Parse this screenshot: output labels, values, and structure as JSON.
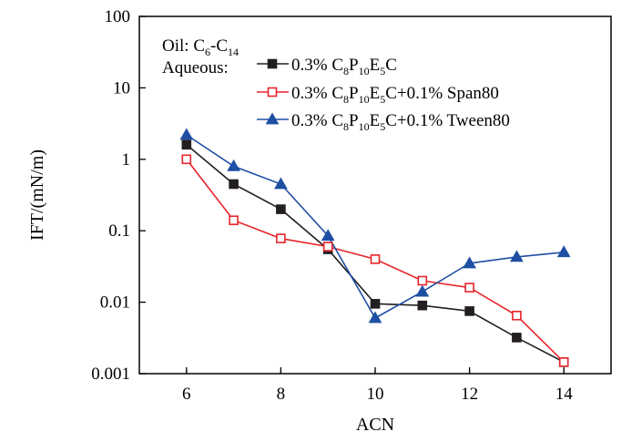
{
  "chart_data": {
    "type": "line",
    "y_scale": "log",
    "xlabel": "ACN",
    "ylabel": "IFT/(mN/m)",
    "xlim": [
      5,
      15
    ],
    "ylim": [
      0.001,
      100
    ],
    "xticks": [
      "6",
      "8",
      "10",
      "12",
      "14"
    ],
    "yticks": [
      "100",
      "10",
      "1",
      "0.1",
      "0.01",
      "0.001"
    ],
    "legend": {
      "placement": "top-left",
      "oil_label": "Oil: ",
      "oil_name": [
        {
          "t": "C",
          "s": "n"
        },
        {
          "t": "6",
          "s": "sub"
        },
        {
          "t": "-C",
          "s": "n"
        },
        {
          "t": "14",
          "s": "sub"
        }
      ],
      "aqueous_label": "Aqueous:"
    },
    "x": [
      6,
      7,
      8,
      9,
      10,
      11,
      12,
      13,
      14
    ],
    "series": [
      {
        "name": "0.3% C8P10E5C",
        "name_rich": [
          {
            "t": "0.3% C",
            "s": "n"
          },
          {
            "t": "8",
            "s": "sub"
          },
          {
            "t": "P",
            "s": "n"
          },
          {
            "t": "10",
            "s": "sub"
          },
          {
            "t": "E",
            "s": "n"
          },
          {
            "t": "5",
            "s": "sub"
          },
          {
            "t": "C",
            "s": "n"
          }
        ],
        "color": "#231f20",
        "marker": "filled-square",
        "values": [
          1.6,
          0.45,
          0.2,
          0.055,
          0.0095,
          0.009,
          0.0075,
          0.0032,
          0.00145
        ]
      },
      {
        "name": "0.3% C8P10E5C+0.1% Span80",
        "name_rich": [
          {
            "t": "0.3% C",
            "s": "n"
          },
          {
            "t": "8",
            "s": "sub"
          },
          {
            "t": "P",
            "s": "n"
          },
          {
            "t": "10",
            "s": "sub"
          },
          {
            "t": "E",
            "s": "n"
          },
          {
            "t": "5",
            "s": "sub"
          },
          {
            "t": "C+0.1% Span80",
            "s": "n"
          }
        ],
        "color": "#e8242b",
        "marker": "open-square",
        "values": [
          1.0,
          0.14,
          0.078,
          0.06,
          0.04,
          0.02,
          0.016,
          0.0065,
          0.00145
        ]
      },
      {
        "name": "0.3% C8P10E5C+0.1% Tween80",
        "name_rich": [
          {
            "t": "0.3% C",
            "s": "n"
          },
          {
            "t": "8",
            "s": "sub"
          },
          {
            "t": "P",
            "s": "n"
          },
          {
            "t": "10",
            "s": "sub"
          },
          {
            "t": "E",
            "s": "n"
          },
          {
            "t": "5",
            "s": "sub"
          },
          {
            "t": "C+0.1% Tween80",
            "s": "n"
          }
        ],
        "color": "#1f4fa3",
        "marker": "filled-triangle",
        "values": [
          2.2,
          0.8,
          0.45,
          0.085,
          0.006,
          0.014,
          0.035,
          0.043,
          0.05
        ]
      }
    ]
  }
}
